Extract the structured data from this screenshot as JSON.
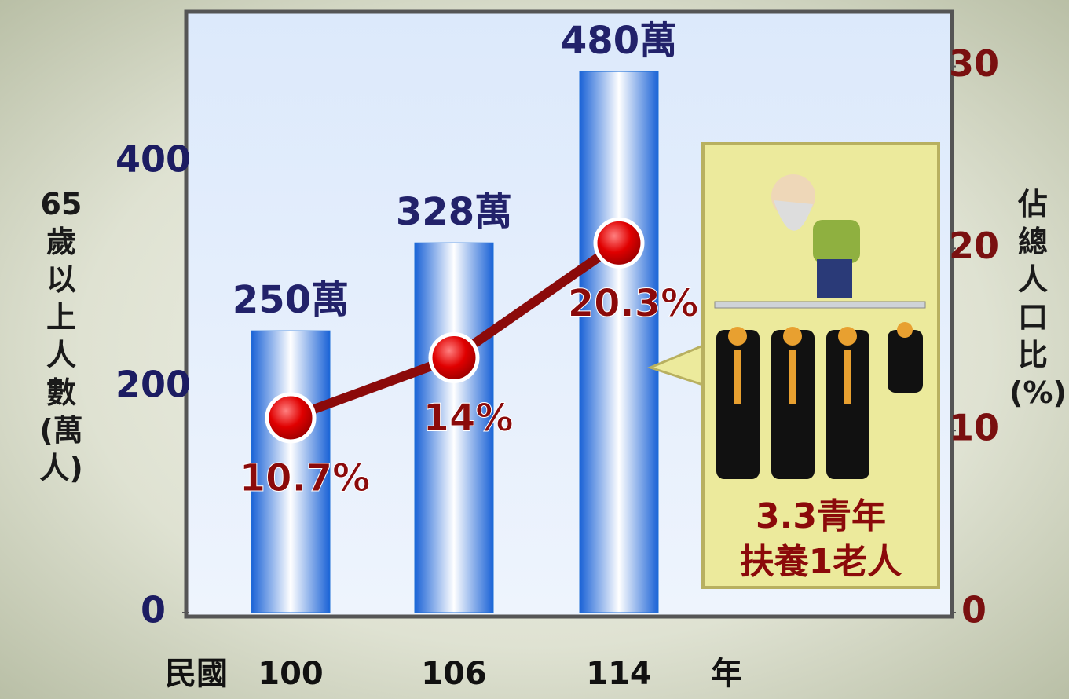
{
  "chart_data": {
    "type": "bar",
    "categories": [
      "100",
      "106",
      "114"
    ],
    "xlabel_left": "民國",
    "xlabel_right": "年",
    "ylabel": "65歲以上人數(萬人)",
    "y2label": "佔總人口比(%)",
    "ylim": [
      0,
      533
    ],
    "yticks": [
      0,
      200,
      400
    ],
    "y2lim": [
      0,
      33
    ],
    "y2ticks": [
      0,
      10,
      20,
      30
    ],
    "series": [
      {
        "type": "bar",
        "color": "#1e6fd8",
        "values": [
          250,
          328,
          480
        ],
        "value_labels": [
          "250萬",
          "328萬",
          "480萬"
        ]
      },
      {
        "type": "line",
        "axis": "y2",
        "color": "#8b0a0a",
        "marker_color": "#e00000",
        "values": [
          10.7,
          14,
          20.3
        ],
        "value_labels": [
          "10.7%",
          "14%",
          "20.3%"
        ]
      }
    ],
    "annotation": [
      "3.3青年",
      "扶養1老人"
    ]
  }
}
